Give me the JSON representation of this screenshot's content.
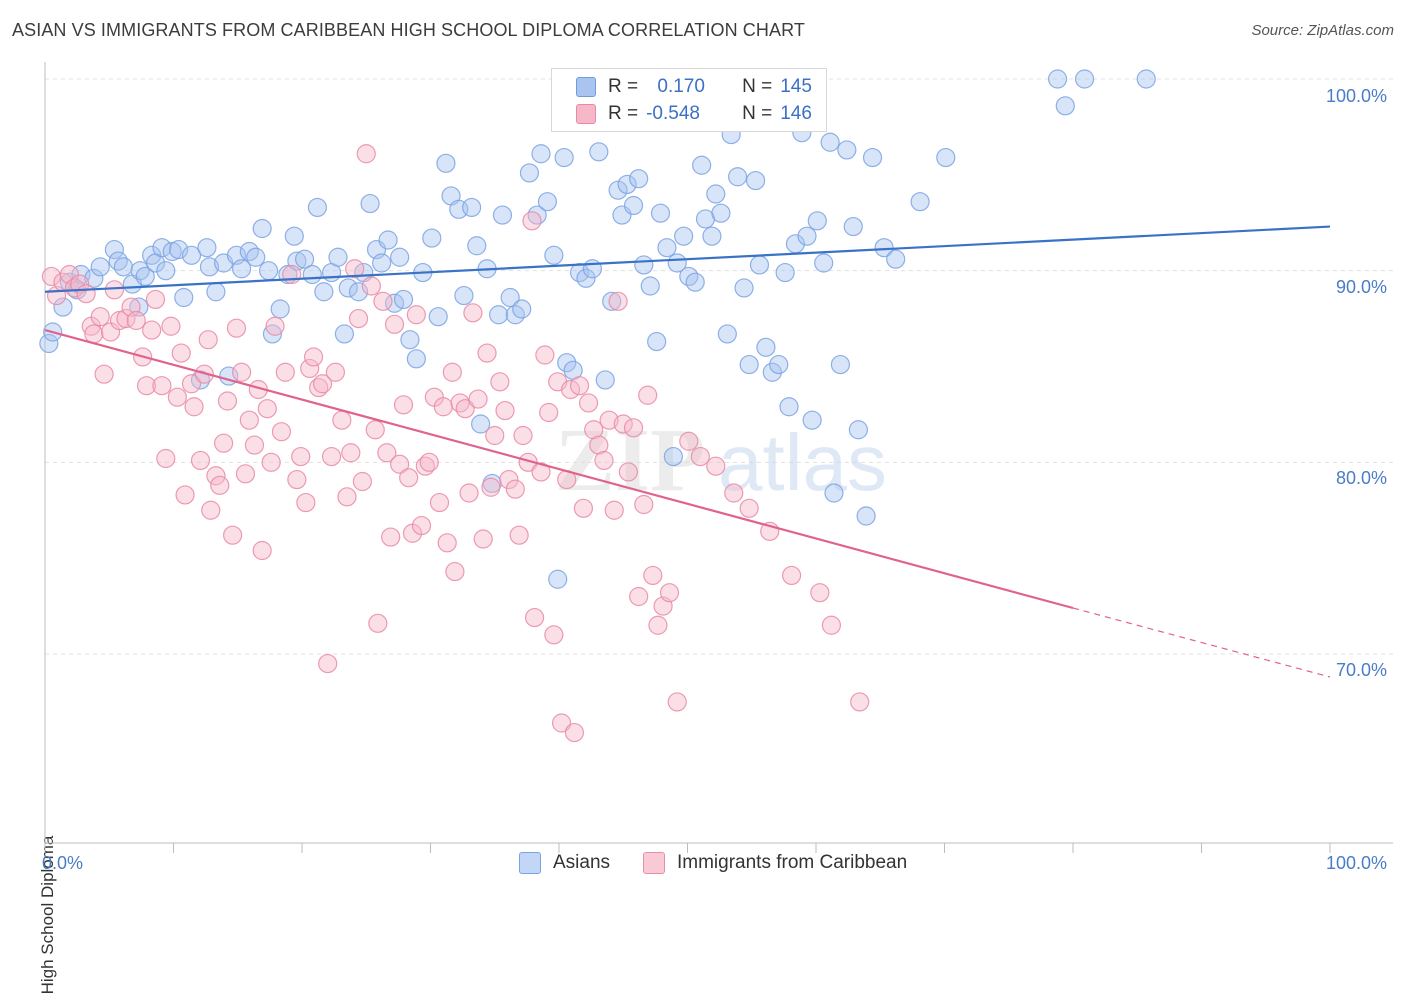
{
  "title": "ASIAN VS IMMIGRANTS FROM CARIBBEAN HIGH SCHOOL DIPLOMA CORRELATION CHART",
  "source": "Source: ZipAtlas.com",
  "watermark": {
    "zip": "ZIP",
    "atlas": "atlas"
  },
  "legend": {
    "rows": [
      {
        "r_label": "R =",
        "r_value": " 0.170",
        "n_label": "N =",
        "n_value": "145",
        "color": "#a9c4ef",
        "border": "#6f9be0"
      },
      {
        "r_label": "R =",
        "r_value": "-0.548",
        "n_label": "N =",
        "n_value": "146",
        "color": "#f6b8c9",
        "border": "#e98aa5"
      }
    ],
    "bottom": [
      {
        "label": "Asians",
        "color": "#c2d6f5",
        "border": "#7aa3e3"
      },
      {
        "label": "Immigrants from Caribbean",
        "color": "#f9cad6",
        "border": "#e88ea8"
      }
    ]
  },
  "chart_data": {
    "type": "scatter",
    "title": "ASIAN VS IMMIGRANTS FROM CARIBBEAN HIGH SCHOOL DIPLOMA CORRELATION CHART",
    "xlabel": "",
    "ylabel": "High School Diploma",
    "xlim": [
      0,
      100
    ],
    "ylim": [
      61,
      102
    ],
    "x_tick_labels": [
      "0.0%",
      "100.0%"
    ],
    "y_ticks": [
      70,
      80,
      90,
      100
    ],
    "y_tick_labels": [
      "70.0%",
      "80.0%",
      "90.0%",
      "100.0%"
    ],
    "grid": true,
    "series": [
      {
        "name": "Asians",
        "color": "#7aa3e3",
        "fill": "#a9c4ef",
        "line_color": "#3a72c8",
        "trend": {
          "x": [
            0,
            100
          ],
          "y": [
            88.9,
            92.3
          ]
        },
        "points": [
          [
            0.3,
            86.2
          ],
          [
            0.6,
            86.8
          ],
          [
            1.4,
            88.1
          ],
          [
            1.9,
            89.4
          ],
          [
            2.5,
            89.0
          ],
          [
            2.8,
            89.8
          ],
          [
            3.8,
            89.6
          ],
          [
            4.3,
            90.2
          ],
          [
            5.4,
            91.1
          ],
          [
            5.7,
            90.5
          ],
          [
            6.1,
            90.2
          ],
          [
            6.8,
            89.3
          ],
          [
            7.3,
            88.1
          ],
          [
            7.4,
            90.0
          ],
          [
            7.8,
            89.7
          ],
          [
            8.3,
            90.8
          ],
          [
            8.6,
            90.4
          ],
          [
            9.1,
            91.2
          ],
          [
            9.4,
            90.0
          ],
          [
            9.9,
            91.0
          ],
          [
            10.4,
            91.1
          ],
          [
            10.8,
            88.6
          ],
          [
            11.4,
            90.8
          ],
          [
            12.1,
            84.3
          ],
          [
            12.6,
            91.2
          ],
          [
            12.8,
            90.2
          ],
          [
            13.3,
            88.9
          ],
          [
            13.9,
            90.4
          ],
          [
            14.3,
            84.5
          ],
          [
            14.9,
            90.8
          ],
          [
            15.3,
            90.1
          ],
          [
            15.9,
            91.0
          ],
          [
            16.4,
            90.7
          ],
          [
            16.9,
            92.2
          ],
          [
            17.4,
            90.0
          ],
          [
            17.7,
            86.7
          ],
          [
            18.3,
            88.0
          ],
          [
            18.9,
            89.8
          ],
          [
            19.4,
            91.8
          ],
          [
            19.6,
            90.5
          ],
          [
            20.2,
            90.6
          ],
          [
            20.8,
            89.8
          ],
          [
            21.2,
            93.3
          ],
          [
            21.7,
            88.9
          ],
          [
            22.3,
            89.9
          ],
          [
            22.8,
            90.7
          ],
          [
            23.3,
            86.7
          ],
          [
            23.6,
            89.1
          ],
          [
            24.4,
            88.9
          ],
          [
            24.8,
            89.9
          ],
          [
            25.3,
            93.5
          ],
          [
            25.8,
            91.1
          ],
          [
            26.2,
            90.4
          ],
          [
            26.7,
            91.6
          ],
          [
            27.2,
            88.3
          ],
          [
            27.6,
            90.7
          ],
          [
            27.9,
            88.5
          ],
          [
            28.4,
            86.4
          ],
          [
            28.9,
            85.4
          ],
          [
            29.4,
            89.9
          ],
          [
            30.1,
            91.7
          ],
          [
            30.6,
            87.6
          ],
          [
            31.2,
            95.6
          ],
          [
            31.6,
            93.9
          ],
          [
            32.2,
            93.2
          ],
          [
            32.6,
            88.7
          ],
          [
            33.2,
            93.3
          ],
          [
            33.6,
            91.3
          ],
          [
            33.9,
            82.0
          ],
          [
            34.4,
            90.1
          ],
          [
            34.8,
            78.9
          ],
          [
            35.3,
            87.7
          ],
          [
            35.6,
            92.9
          ],
          [
            36.2,
            88.6
          ],
          [
            36.6,
            87.7
          ],
          [
            37.1,
            88.0
          ],
          [
            37.7,
            95.1
          ],
          [
            38.3,
            92.9
          ],
          [
            38.6,
            96.1
          ],
          [
            39.1,
            93.6
          ],
          [
            39.6,
            90.8
          ],
          [
            39.9,
            73.9
          ],
          [
            40.4,
            95.9
          ],
          [
            40.6,
            85.2
          ],
          [
            41.1,
            84.8
          ],
          [
            41.6,
            89.9
          ],
          [
            42.1,
            89.6
          ],
          [
            42.6,
            90.1
          ],
          [
            43.1,
            96.2
          ],
          [
            43.6,
            84.3
          ],
          [
            44.1,
            88.4
          ],
          [
            44.6,
            94.2
          ],
          [
            44.9,
            92.9
          ],
          [
            45.3,
            94.5
          ],
          [
            45.8,
            93.4
          ],
          [
            46.2,
            94.8
          ],
          [
            46.6,
            90.3
          ],
          [
            47.1,
            89.2
          ],
          [
            47.6,
            86.3
          ],
          [
            47.9,
            93.0
          ],
          [
            48.4,
            91.2
          ],
          [
            48.9,
            80.3
          ],
          [
            49.2,
            90.4
          ],
          [
            49.7,
            91.8
          ],
          [
            50.1,
            89.7
          ],
          [
            50.6,
            89.4
          ],
          [
            51.1,
            95.5
          ],
          [
            51.4,
            92.7
          ],
          [
            51.9,
            91.8
          ],
          [
            52.2,
            94.0
          ],
          [
            52.6,
            93.0
          ],
          [
            53.1,
            86.7
          ],
          [
            53.4,
            97.1
          ],
          [
            53.9,
            94.9
          ],
          [
            54.4,
            89.1
          ],
          [
            54.8,
            85.1
          ],
          [
            55.3,
            94.7
          ],
          [
            55.6,
            90.3
          ],
          [
            56.1,
            86.0
          ],
          [
            56.6,
            84.7
          ],
          [
            57.1,
            85.1
          ],
          [
            57.6,
            89.9
          ],
          [
            57.9,
            82.9
          ],
          [
            58.4,
            91.4
          ],
          [
            58.9,
            97.2
          ],
          [
            59.3,
            91.8
          ],
          [
            59.7,
            82.2
          ],
          [
            60.1,
            92.6
          ],
          [
            60.6,
            90.4
          ],
          [
            61.1,
            96.7
          ],
          [
            61.4,
            78.4
          ],
          [
            61.9,
            85.1
          ],
          [
            62.4,
            96.3
          ],
          [
            62.9,
            92.3
          ],
          [
            63.3,
            81.7
          ],
          [
            63.9,
            77.2
          ],
          [
            64.4,
            95.9
          ],
          [
            65.3,
            91.2
          ],
          [
            66.2,
            90.6
          ],
          [
            68.1,
            93.6
          ],
          [
            70.1,
            95.9
          ],
          [
            78.8,
            100.0
          ],
          [
            79.4,
            98.6
          ],
          [
            80.9,
            100.0
          ],
          [
            85.7,
            100.0
          ]
        ]
      },
      {
        "name": "Immigrants from Caribbean",
        "color": "#e98aa5",
        "fill": "#f6b8c9",
        "line_color": "#e0638e",
        "trend": {
          "x": [
            0,
            80
          ],
          "y": [
            86.9,
            72.4
          ]
        },
        "trend_dashed": {
          "x": [
            80,
            100
          ],
          "y": [
            72.4,
            68.8
          ]
        },
        "points": [
          [
            0.5,
            89.7
          ],
          [
            0.9,
            88.7
          ],
          [
            1.4,
            89.4
          ],
          [
            1.9,
            89.8
          ],
          [
            2.3,
            89.1
          ],
          [
            2.7,
            89.3
          ],
          [
            3.2,
            88.8
          ],
          [
            3.6,
            87.1
          ],
          [
            3.8,
            86.7
          ],
          [
            4.3,
            87.6
          ],
          [
            4.6,
            84.6
          ],
          [
            5.1,
            86.8
          ],
          [
            5.4,
            89.0
          ],
          [
            5.8,
            87.4
          ],
          [
            6.3,
            87.5
          ],
          [
            6.7,
            88.1
          ],
          [
            7.1,
            87.4
          ],
          [
            7.6,
            85.5
          ],
          [
            7.9,
            84.0
          ],
          [
            8.3,
            86.9
          ],
          [
            8.6,
            88.5
          ],
          [
            9.1,
            84.0
          ],
          [
            9.4,
            80.2
          ],
          [
            9.8,
            87.1
          ],
          [
            10.3,
            83.4
          ],
          [
            10.6,
            85.7
          ],
          [
            10.9,
            78.3
          ],
          [
            11.4,
            84.1
          ],
          [
            11.6,
            82.9
          ],
          [
            12.1,
            80.1
          ],
          [
            12.4,
            84.6
          ],
          [
            12.7,
            86.4
          ],
          [
            12.9,
            77.5
          ],
          [
            13.3,
            79.3
          ],
          [
            13.6,
            78.8
          ],
          [
            13.9,
            81.0
          ],
          [
            14.2,
            83.2
          ],
          [
            14.6,
            76.2
          ],
          [
            14.9,
            87.0
          ],
          [
            15.3,
            84.7
          ],
          [
            15.6,
            79.4
          ],
          [
            15.9,
            82.2
          ],
          [
            16.3,
            80.9
          ],
          [
            16.6,
            83.8
          ],
          [
            16.9,
            75.4
          ],
          [
            17.3,
            82.8
          ],
          [
            17.6,
            80.0
          ],
          [
            17.9,
            87.1
          ],
          [
            18.4,
            81.6
          ],
          [
            18.7,
            84.7
          ],
          [
            19.2,
            89.8
          ],
          [
            19.6,
            79.1
          ],
          [
            19.9,
            80.3
          ],
          [
            20.3,
            77.9
          ],
          [
            20.6,
            84.9
          ],
          [
            20.9,
            85.5
          ],
          [
            21.3,
            83.9
          ],
          [
            21.6,
            84.1
          ],
          [
            22.0,
            69.5
          ],
          [
            22.3,
            80.3
          ],
          [
            22.6,
            84.7
          ],
          [
            23.1,
            82.2
          ],
          [
            23.5,
            78.2
          ],
          [
            23.8,
            80.5
          ],
          [
            24.1,
            90.1
          ],
          [
            24.4,
            87.5
          ],
          [
            24.7,
            79.0
          ],
          [
            25.0,
            96.1
          ],
          [
            25.4,
            89.2
          ],
          [
            25.7,
            81.7
          ],
          [
            25.9,
            71.6
          ],
          [
            26.3,
            88.4
          ],
          [
            26.6,
            80.5
          ],
          [
            26.9,
            76.1
          ],
          [
            27.2,
            87.2
          ],
          [
            27.6,
            79.9
          ],
          [
            27.9,
            83.0
          ],
          [
            28.3,
            79.2
          ],
          [
            28.6,
            76.3
          ],
          [
            28.9,
            87.7
          ],
          [
            29.3,
            76.7
          ],
          [
            29.6,
            79.8
          ],
          [
            29.9,
            80.0
          ],
          [
            30.3,
            83.4
          ],
          [
            30.7,
            77.9
          ],
          [
            31.0,
            82.9
          ],
          [
            31.3,
            75.8
          ],
          [
            31.7,
            84.7
          ],
          [
            31.9,
            74.3
          ],
          [
            32.3,
            83.1
          ],
          [
            32.7,
            82.8
          ],
          [
            33.0,
            78.4
          ],
          [
            33.3,
            87.8
          ],
          [
            33.7,
            83.3
          ],
          [
            34.1,
            76.0
          ],
          [
            34.4,
            85.7
          ],
          [
            34.7,
            78.7
          ],
          [
            35.0,
            81.4
          ],
          [
            35.4,
            84.2
          ],
          [
            35.8,
            82.7
          ],
          [
            36.1,
            79.1
          ],
          [
            36.6,
            78.6
          ],
          [
            36.9,
            76.2
          ],
          [
            37.2,
            81.4
          ],
          [
            37.6,
            80.0
          ],
          [
            37.9,
            92.6
          ],
          [
            38.1,
            71.9
          ],
          [
            38.6,
            79.5
          ],
          [
            38.9,
            85.6
          ],
          [
            39.2,
            82.6
          ],
          [
            39.6,
            71.0
          ],
          [
            39.9,
            84.2
          ],
          [
            40.2,
            66.4
          ],
          [
            40.6,
            79.1
          ],
          [
            40.9,
            83.8
          ],
          [
            41.2,
            65.9
          ],
          [
            41.6,
            84.0
          ],
          [
            41.9,
            77.6
          ],
          [
            42.3,
            83.1
          ],
          [
            42.7,
            81.7
          ],
          [
            43.1,
            80.9
          ],
          [
            43.5,
            80.1
          ],
          [
            43.9,
            82.2
          ],
          [
            44.3,
            77.5
          ],
          [
            44.6,
            88.4
          ],
          [
            45.0,
            82.0
          ],
          [
            45.4,
            79.5
          ],
          [
            45.8,
            81.8
          ],
          [
            46.2,
            73.0
          ],
          [
            46.6,
            77.8
          ],
          [
            46.9,
            83.5
          ],
          [
            47.3,
            74.1
          ],
          [
            47.7,
            71.5
          ],
          [
            48.1,
            72.5
          ],
          [
            48.6,
            73.2
          ],
          [
            49.2,
            67.5
          ],
          [
            50.1,
            81.1
          ],
          [
            51.0,
            80.3
          ],
          [
            52.2,
            79.8
          ],
          [
            53.6,
            78.4
          ],
          [
            54.8,
            77.6
          ],
          [
            56.4,
            76.4
          ],
          [
            58.1,
            74.1
          ],
          [
            60.3,
            73.2
          ],
          [
            61.2,
            71.5
          ],
          [
            63.4,
            67.5
          ]
        ]
      }
    ]
  }
}
